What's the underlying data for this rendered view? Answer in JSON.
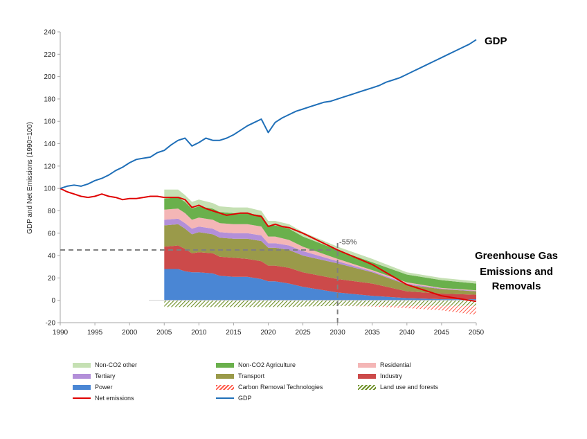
{
  "chart_data": {
    "type": "area",
    "title": "",
    "xlabel": "",
    "ylabel": "GDP and Net Emissions (1990=100)",
    "xlim": [
      1990,
      2050
    ],
    "ylim": [
      -20,
      240
    ],
    "xticks": [
      1990,
      1995,
      2000,
      2005,
      2010,
      2015,
      2020,
      2025,
      2030,
      2035,
      2040,
      2045,
      2050
    ],
    "yticks": [
      -20,
      0,
      20,
      40,
      60,
      80,
      100,
      120,
      140,
      160,
      180,
      200,
      220,
      240
    ],
    "grid": false,
    "legend_position": "bottom",
    "annotations": {
      "gdp_label": "GDP",
      "ghg_label_lines": [
        "Greenhouse Gas",
        "Emissions and",
        "Removals"
      ],
      "reduction_label": "-55%",
      "reference_line": {
        "x": 2030,
        "y": 45
      }
    },
    "stack_years": [
      2005,
      2007,
      2008,
      2009,
      2010,
      2012,
      2013,
      2015,
      2017,
      2019,
      2020,
      2021,
      2023,
      2025,
      2030,
      2035,
      2040,
      2045,
      2050
    ],
    "stacked_series": [
      {
        "name": "Power",
        "color": "#4a86d4",
        "values": [
          28,
          28,
          26,
          25,
          25,
          24,
          22,
          21,
          21,
          19,
          17,
          17,
          15,
          12,
          7,
          4,
          2,
          1,
          1
        ]
      },
      {
        "name": "Industry",
        "color": "#cc4a4a",
        "values": [
          20,
          21,
          20,
          17,
          18,
          18,
          17,
          17,
          16,
          16,
          14,
          14,
          14,
          13,
          12,
          11,
          6,
          5,
          4
        ]
      },
      {
        "name": "Transport",
        "color": "#9a9a4a",
        "values": [
          19,
          19,
          18,
          17,
          18,
          17,
          17,
          17,
          18,
          18,
          16,
          16,
          16,
          15,
          14,
          10,
          6,
          4,
          3
        ]
      },
      {
        "name": "Tertiary",
        "color": "#b38fd9",
        "values": [
          5,
          5,
          5,
          5,
          5,
          5,
          5,
          5,
          5,
          5,
          4,
          4,
          4,
          4,
          2,
          1,
          1,
          0.5,
          0.5
        ]
      },
      {
        "name": "Residential",
        "color": "#f4b6b6",
        "values": [
          9,
          9,
          9,
          8,
          8,
          8,
          8,
          8,
          8,
          8,
          6,
          6,
          5,
          4,
          2,
          1,
          1,
          0.5,
          0.5
        ]
      },
      {
        "name": "Non-CO2 Agriculture",
        "color": "#6ab04c",
        "values": [
          10,
          10,
          10,
          10,
          10,
          10,
          10,
          10,
          10,
          10,
          10,
          10,
          10,
          9,
          8,
          7,
          7,
          7,
          6
        ]
      },
      {
        "name": "Non-CO2 other",
        "color": "#c5e0b3",
        "values": [
          8,
          7,
          6,
          6,
          6,
          5,
          5,
          5,
          5,
          4,
          4,
          4,
          4,
          4,
          3,
          3,
          2,
          2,
          2
        ]
      }
    ],
    "negative_series": [
      {
        "name": "Land use and forests",
        "color": "#6b8e23",
        "pattern": "hatch-green",
        "values": [
          -6,
          -6,
          -6,
          -6,
          -6,
          -6,
          -6,
          -6,
          -6,
          -6,
          -6,
          -6,
          -6,
          -5.5,
          -5,
          -5,
          -5,
          -5,
          -5
        ]
      },
      {
        "name": "Carbon Removal Technologies",
        "color": "#ff5a4a",
        "pattern": "hatch-red",
        "values": [
          0,
          0,
          0,
          0,
          0,
          0,
          0,
          0,
          0,
          0,
          0,
          0,
          0,
          0,
          0,
          -0.5,
          -2,
          -4,
          -8
        ]
      }
    ],
    "lines": [
      {
        "name": "Net emissions",
        "color": "#e00000",
        "x": [
          1990,
          1991,
          1992,
          1993,
          1994,
          1995,
          1996,
          1997,
          1998,
          1999,
          2000,
          2001,
          2002,
          2003,
          2004,
          2005,
          2006,
          2007,
          2008,
          2009,
          2010,
          2011,
          2012,
          2013,
          2014,
          2015,
          2016,
          2017,
          2018,
          2019,
          2020,
          2021,
          2022,
          2023,
          2025,
          2030,
          2035,
          2040,
          2045,
          2050
        ],
        "y": [
          100,
          97,
          95,
          93,
          92,
          93,
          95,
          93,
          92,
          90,
          91,
          91,
          92,
          93,
          93,
          92,
          92,
          92,
          90,
          83,
          85,
          82,
          80,
          78,
          76,
          77,
          78,
          78,
          76,
          75,
          66,
          68,
          66,
          65,
          60,
          45,
          32,
          14,
          4,
          -1
        ]
      },
      {
        "name": "GDP",
        "color": "#1f6fb8",
        "x": [
          1990,
          1991,
          1992,
          1993,
          1994,
          1995,
          1996,
          1997,
          1998,
          1999,
          2000,
          2001,
          2002,
          2003,
          2004,
          2005,
          2006,
          2007,
          2008,
          2009,
          2010,
          2011,
          2012,
          2013,
          2014,
          2015,
          2016,
          2017,
          2018,
          2019,
          2020,
          2021,
          2022,
          2023,
          2024,
          2025,
          2026,
          2027,
          2028,
          2029,
          2030,
          2031,
          2032,
          2033,
          2034,
          2035,
          2036,
          2037,
          2038,
          2039,
          2040,
          2041,
          2042,
          2043,
          2044,
          2045,
          2046,
          2047,
          2048,
          2049,
          2050
        ],
        "y": [
          100,
          102,
          103,
          102,
          104,
          107,
          109,
          112,
          116,
          119,
          123,
          126,
          127,
          128,
          132,
          134,
          139,
          143,
          145,
          138,
          141,
          145,
          143,
          143,
          145,
          148,
          152,
          156,
          159,
          162,
          150,
          159,
          163,
          166,
          169,
          171,
          173,
          175,
          177,
          178,
          180,
          182,
          184,
          186,
          188,
          190,
          192,
          195,
          197,
          199,
          202,
          205,
          208,
          211,
          214,
          217,
          220,
          223,
          226,
          229,
          233
        ]
      }
    ]
  },
  "legend": {
    "items": [
      {
        "label": "Non-CO2 other",
        "kind": "fill",
        "color": "#c5e0b3"
      },
      {
        "label": "Non-CO2 Agriculture",
        "kind": "fill",
        "color": "#6ab04c"
      },
      {
        "label": "Residential",
        "kind": "fill",
        "color": "#f4b6b6"
      },
      {
        "label": "Tertiary",
        "kind": "fill",
        "color": "#b38fd9"
      },
      {
        "label": "Transport",
        "kind": "fill",
        "color": "#9a9a4a"
      },
      {
        "label": "Industry",
        "kind": "fill",
        "color": "#cc4a4a"
      },
      {
        "label": "Power",
        "kind": "fill",
        "color": "#4a86d4"
      },
      {
        "label": "Carbon Removal Technologies",
        "kind": "hatch-red",
        "color": "#ff5a4a"
      },
      {
        "label": "Land use and forests",
        "kind": "hatch-green",
        "color": "#6b8e23"
      },
      {
        "label": "Net emissions",
        "kind": "line",
        "color": "#e00000"
      },
      {
        "label": "GDP",
        "kind": "line",
        "color": "#1f6fb8"
      }
    ]
  }
}
